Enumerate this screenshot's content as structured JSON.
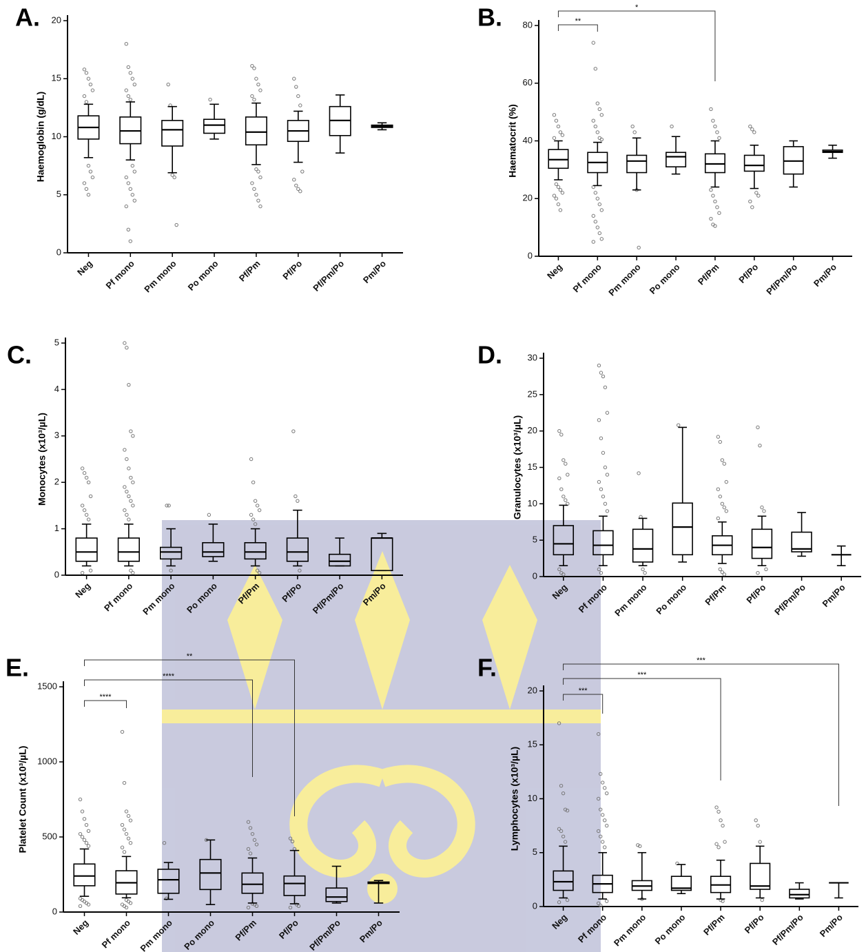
{
  "chart_data": [
    {
      "type": "box",
      "label": "A.",
      "y_label": "Haemoglobin (g/dL)",
      "ylim": [
        0,
        20
      ],
      "yticks": [
        0,
        5,
        10,
        15,
        20
      ],
      "categories": [
        "Neg",
        "Pf mono",
        "Pm mono",
        "Po mono",
        "Pf/Pm",
        "Pf/Po",
        "Pf/Pm/Po",
        "Pm/Po"
      ],
      "boxes": [
        {
          "min": 8.2,
          "q1": 9.8,
          "median": 10.8,
          "q3": 11.8,
          "max": 12.8,
          "outliers": [
            15.8,
            15.5,
            15,
            14.5,
            14,
            13.5,
            13,
            7.5,
            7,
            6.5,
            6,
            5.5,
            5
          ]
        },
        {
          "min": 8,
          "q1": 9.4,
          "median": 10.5,
          "q3": 11.7,
          "max": 13,
          "outliers": [
            18,
            16,
            15.5,
            15,
            14.5,
            14,
            13.5,
            13.2,
            7.5,
            7,
            6.5,
            6,
            5.5,
            5,
            4.5,
            4,
            2,
            1
          ]
        },
        {
          "min": 6.9,
          "q1": 9.2,
          "median": 10.6,
          "q3": 11.4,
          "max": 12.6,
          "outliers": [
            14.5,
            12.7,
            6.7,
            6.5,
            2.4
          ]
        },
        {
          "min": 9.8,
          "q1": 10.3,
          "median": 11,
          "q3": 11.5,
          "max": 12.8,
          "outliers": [
            13.2
          ]
        },
        {
          "min": 7.6,
          "q1": 9.3,
          "median": 10.4,
          "q3": 11.7,
          "max": 12.9,
          "outliers": [
            16.1,
            15.9,
            15,
            14.5,
            14,
            13.5,
            13.2,
            7.2,
            7,
            6.5,
            6,
            5.5,
            5,
            4.5,
            4
          ]
        },
        {
          "min": 7.8,
          "q1": 9.6,
          "median": 10.5,
          "q3": 11.4,
          "max": 12.2,
          "outliers": [
            15,
            14.3,
            13.5,
            12.7,
            7,
            6.3,
            5.8,
            5.5,
            5.3
          ]
        },
        {
          "min": 8.6,
          "q1": 10.1,
          "median": 11.4,
          "q3": 12.6,
          "max": 13.6,
          "outliers": []
        },
        {
          "min": 10.6,
          "q1": 10.8,
          "median": 10.9,
          "q3": 11,
          "max": 11.2,
          "outliers": []
        }
      ],
      "annotations": []
    },
    {
      "type": "box",
      "label": "B.",
      "y_label": "Haematocrit (%)",
      "ylim": [
        0,
        80
      ],
      "yticks": [
        0,
        20,
        40,
        60,
        80
      ],
      "categories": [
        "Neg",
        "Pf mono",
        "Pm mono",
        "Po mono",
        "Pf/Pm",
        "Pf/Po",
        "Pf/Pm/Po",
        "Pm/Po"
      ],
      "boxes": [
        {
          "min": 26.5,
          "q1": 30.5,
          "median": 33.5,
          "q3": 37,
          "max": 40,
          "outliers": [
            49,
            47,
            45,
            43,
            42,
            41,
            25,
            24,
            23,
            22,
            21,
            20,
            18,
            16
          ]
        },
        {
          "min": 24.5,
          "q1": 29,
          "median": 32.5,
          "q3": 36,
          "max": 39.5,
          "outliers": [
            74,
            65,
            53,
            51,
            49,
            47,
            45,
            43,
            41,
            40.5,
            24,
            22,
            20,
            18,
            16,
            14,
            12,
            10,
            8,
            6,
            5
          ]
        },
        {
          "min": 23,
          "q1": 29,
          "median": 33,
          "q3": 35,
          "max": 41,
          "outliers": [
            45,
            43,
            23,
            3
          ]
        },
        {
          "min": 28.5,
          "q1": 31,
          "median": 34.5,
          "q3": 36,
          "max": 41.5,
          "outliers": [
            45
          ]
        },
        {
          "min": 24,
          "q1": 29,
          "median": 32,
          "q3": 35.5,
          "max": 40,
          "outliers": [
            51,
            47,
            45,
            43,
            41,
            23,
            21,
            19,
            17,
            15,
            13,
            11,
            10.5
          ]
        },
        {
          "min": 23.5,
          "q1": 29.5,
          "median": 31.5,
          "q3": 35,
          "max": 38.5,
          "outliers": [
            45,
            44,
            43,
            22,
            21,
            19,
            17
          ]
        },
        {
          "min": 24,
          "q1": 28.5,
          "median": 33,
          "q3": 38,
          "max": 40,
          "outliers": []
        },
        {
          "min": 34,
          "q1": 36,
          "median": 36.3,
          "q3": 36.8,
          "max": 38.5,
          "outliers": []
        }
      ],
      "annotations": [
        {
          "groups": [
            "Neg",
            "Pf mono"
          ],
          "label": "**"
        },
        {
          "groups": [
            "Neg",
            "Pf/Pm"
          ],
          "label": "*"
        }
      ]
    },
    {
      "type": "box",
      "label": "C.",
      "y_label": "Monocytes (x10³/µL)",
      "ylim": [
        0,
        5
      ],
      "yticks": [
        0,
        1,
        2,
        3,
        4,
        5
      ],
      "categories": [
        "Neg",
        "Pf mono",
        "Pm mono",
        "Po mono",
        "Pf/Pm",
        "Pf/Po",
        "Pf/Pm/Po",
        "Pm/Po"
      ],
      "boxes": [
        {
          "min": 0.2,
          "q1": 0.3,
          "median": 0.5,
          "q3": 0.8,
          "max": 1.1,
          "outliers": [
            2.3,
            2.2,
            2.1,
            2,
            1.7,
            1.5,
            1.4,
            1.3,
            1.2,
            0.1,
            0.05
          ]
        },
        {
          "min": 0.2,
          "q1": 0.3,
          "median": 0.5,
          "q3": 0.8,
          "max": 1.1,
          "outliers": [
            5,
            4.9,
            4.1,
            3.1,
            3,
            2.7,
            2.5,
            2.3,
            2.1,
            2,
            1.9,
            1.8,
            1.7,
            1.6,
            1.5,
            1.4,
            1.3,
            1.2,
            0.1,
            0.05
          ]
        },
        {
          "min": 0.2,
          "q1": 0.35,
          "median": 0.5,
          "q3": 0.6,
          "max": 1,
          "outliers": [
            1.5,
            1.5,
            0.1
          ]
        },
        {
          "min": 0.3,
          "q1": 0.4,
          "median": 0.5,
          "q3": 0.7,
          "max": 1.1,
          "outliers": [
            1.3
          ]
        },
        {
          "min": 0.2,
          "q1": 0.35,
          "median": 0.5,
          "q3": 0.7,
          "max": 1,
          "outliers": [
            2.5,
            2,
            1.6,
            1.5,
            1.4,
            1.3,
            1.2,
            1.1,
            0.1,
            0.05
          ]
        },
        {
          "min": 0.2,
          "q1": 0.3,
          "median": 0.5,
          "q3": 0.8,
          "max": 1.4,
          "outliers": [
            3.1,
            1.7,
            1.6,
            0.1
          ]
        },
        {
          "min": 0.2,
          "q1": 0.2,
          "median": 0.3,
          "q3": 0.45,
          "max": 0.8,
          "outliers": []
        },
        {
          "min": 0.1,
          "q1": 0.1,
          "median": 0.8,
          "q3": 0.8,
          "max": 0.9,
          "outliers": []
        }
      ],
      "annotations": []
    },
    {
      "type": "box",
      "label": "D.",
      "y_label": "Granulocytes (x10³/µL)",
      "ylim": [
        0,
        30
      ],
      "yticks": [
        0,
        5,
        10,
        15,
        20,
        25,
        30
      ],
      "categories": [
        "Neg",
        "Pf mono",
        "Pm mono",
        "Po mono",
        "Pf/Pm",
        "Pf/Po",
        "Pf/Pm/Po",
        "Pm/Po"
      ],
      "boxes": [
        {
          "min": 1.5,
          "q1": 3,
          "median": 4.5,
          "q3": 7,
          "max": 9.8,
          "outliers": [
            20,
            19.5,
            16,
            15.5,
            14,
            13.5,
            12,
            11,
            10.5,
            10,
            1,
            0.5,
            0.3
          ]
        },
        {
          "min": 1.5,
          "q1": 3,
          "median": 4.3,
          "q3": 6.3,
          "max": 8.3,
          "outliers": [
            29,
            28,
            27.5,
            26,
            22.5,
            21.5,
            19,
            17,
            15,
            14,
            13,
            12,
            11,
            10,
            9,
            1,
            0.5
          ]
        },
        {
          "min": 1.5,
          "q1": 2,
          "median": 3.8,
          "q3": 6.5,
          "max": 8,
          "outliers": [
            14.2,
            8.2,
            1,
            0.5
          ]
        },
        {
          "min": 2,
          "q1": 3,
          "median": 6.8,
          "q3": 10.1,
          "max": 20.5,
          "outliers": [
            20.8
          ]
        },
        {
          "min": 1.8,
          "q1": 3,
          "median": 4.3,
          "q3": 5.6,
          "max": 7.5,
          "outliers": [
            19.2,
            18.5,
            16,
            15.5,
            13,
            12,
            11,
            10,
            9.5,
            9,
            8,
            1,
            0.6,
            0.3
          ]
        },
        {
          "min": 1.5,
          "q1": 2.5,
          "median": 4,
          "q3": 6.5,
          "max": 8.3,
          "outliers": [
            20.5,
            18,
            9.5,
            9,
            1,
            0.5
          ]
        },
        {
          "min": 2.8,
          "q1": 3.4,
          "median": 3.8,
          "q3": 6.1,
          "max": 8.8,
          "outliers": []
        },
        {
          "min": 1.5,
          "q1": 3,
          "median": 3,
          "q3": 3,
          "max": 4.2,
          "outliers": []
        }
      ],
      "annotations": []
    },
    {
      "type": "box",
      "label": "E.",
      "y_label": "Platelet Count  (x10³/µL)",
      "ylim": [
        0,
        1500
      ],
      "yticks": [
        0,
        500,
        1000,
        1500
      ],
      "categories": [
        "Neg",
        "Pf mono",
        "Pm mono",
        "Po mono",
        "Pf/Pm",
        "Pf/Po",
        "Pf/Pm/Po",
        "Pm/Po"
      ],
      "boxes": [
        {
          "min": 105,
          "q1": 175,
          "median": 240,
          "q3": 320,
          "max": 420,
          "outliers": [
            750,
            670,
            620,
            580,
            540,
            520,
            500,
            480,
            460,
            440,
            90,
            80,
            70,
            60,
            50,
            40
          ]
        },
        {
          "min": 95,
          "q1": 120,
          "median": 195,
          "q3": 275,
          "max": 370,
          "outliers": [
            1200,
            860,
            670,
            640,
            610,
            580,
            550,
            520,
            490,
            460,
            430,
            400,
            80,
            70,
            60,
            50,
            40,
            30
          ]
        },
        {
          "min": 85,
          "q1": 125,
          "median": 215,
          "q3": 285,
          "max": 330,
          "outliers": [
            460,
            90
          ]
        },
        {
          "min": 50,
          "q1": 150,
          "median": 260,
          "q3": 350,
          "max": 480,
          "outliers": [
            480
          ]
        },
        {
          "min": 60,
          "q1": 125,
          "median": 185,
          "q3": 260,
          "max": 360,
          "outliers": [
            600,
            560,
            520,
            480,
            450,
            420,
            390,
            55,
            50,
            40,
            30
          ]
        },
        {
          "min": 55,
          "q1": 110,
          "median": 190,
          "q3": 240,
          "max": 410,
          "outliers": [
            490,
            470,
            420,
            50,
            40,
            30
          ]
        },
        {
          "min": 60,
          "q1": 70,
          "median": 100,
          "q3": 160,
          "max": 305,
          "outliers": []
        },
        {
          "min": 60,
          "q1": 190,
          "median": 195,
          "q3": 200,
          "max": 210,
          "outliers": []
        }
      ],
      "annotations": [
        {
          "groups": [
            "Neg",
            "Pf mono"
          ],
          "label": "****"
        },
        {
          "groups": [
            "Neg",
            "Pf/Pm"
          ],
          "label": "****"
        },
        {
          "groups": [
            "Neg",
            "Pf/Po"
          ],
          "label": "**"
        }
      ]
    },
    {
      "type": "box",
      "label": "F.",
      "y_label": "Lymphocytes (x10³/µL)",
      "ylim": [
        0,
        20
      ],
      "yticks": [
        0,
        5,
        10,
        15,
        20
      ],
      "categories": [
        "Neg",
        "Pf mono",
        "Pm mono",
        "Po mono",
        "Pf/Pm",
        "Pf/Po",
        "Pf/Pm/Po",
        "Pm/Po"
      ],
      "boxes": [
        {
          "min": 0.8,
          "q1": 1.5,
          "median": 2.3,
          "q3": 3.3,
          "max": 5.6,
          "outliers": [
            17,
            11.2,
            10.5,
            9,
            8.9,
            7.2,
            7,
            6.5,
            6,
            0.6,
            0.4
          ]
        },
        {
          "min": 0.7,
          "q1": 1.3,
          "median": 2.1,
          "q3": 2.9,
          "max": 5,
          "outliers": [
            16,
            12.3,
            11.5,
            11,
            10.5,
            10,
            9,
            8.5,
            8,
            7.5,
            7,
            6.5,
            6,
            5.5,
            0.5,
            0.3,
            0.1
          ]
        },
        {
          "min": 0.7,
          "q1": 1.5,
          "median": 1.9,
          "q3": 2.4,
          "max": 5,
          "outliers": [
            5.7,
            5.6,
            0.7
          ]
        },
        {
          "min": 1.2,
          "q1": 1.5,
          "median": 1.7,
          "q3": 2.8,
          "max": 3.9,
          "outliers": [
            4
          ]
        },
        {
          "min": 0.7,
          "q1": 1.3,
          "median": 2,
          "q3": 2.8,
          "max": 4.3,
          "outliers": [
            9.2,
            8.8,
            8,
            7.5,
            6,
            5.8,
            5.5,
            0.6,
            0.5
          ]
        },
        {
          "min": 0.8,
          "q1": 1.6,
          "median": 1.9,
          "q3": 4,
          "max": 5.6,
          "outliers": [
            8,
            7.5,
            6,
            0.6
          ]
        },
        {
          "min": 0.7,
          "q1": 0.8,
          "median": 1.1,
          "q3": 1.6,
          "max": 2.2,
          "outliers": []
        },
        {
          "min": 0.8,
          "q1": 2.2,
          "median": 2.2,
          "q3": 2.2,
          "max": 2.2,
          "outliers": []
        }
      ],
      "annotations": [
        {
          "groups": [
            "Neg",
            "Pf mono"
          ],
          "label": "***"
        },
        {
          "groups": [
            "Neg",
            "Pf/Pm"
          ],
          "label": "***"
        },
        {
          "groups": [
            "Neg",
            "Pm/Po"
          ],
          "label": "***"
        }
      ]
    }
  ]
}
